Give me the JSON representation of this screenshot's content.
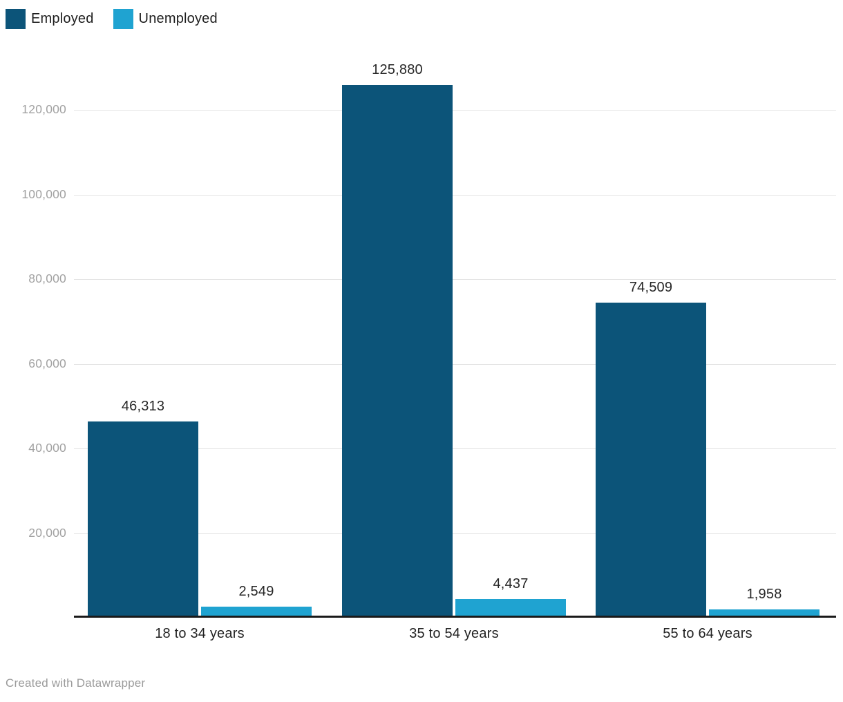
{
  "legend": {
    "items": [
      {
        "label": "Employed",
        "color": "#0c5479"
      },
      {
        "label": "Unemployed",
        "color": "#1fa3d1"
      }
    ]
  },
  "footer": "Created with Datawrapper",
  "chart_data": {
    "type": "bar",
    "title": "",
    "categories": [
      "18 to 34 years",
      "35 to 54 years",
      "55 to 64 years"
    ],
    "series": [
      {
        "name": "Employed",
        "color": "#0c5479",
        "values": [
          46313,
          125880,
          74509
        ],
        "labels": [
          "46,313",
          "125,880",
          "74,509"
        ]
      },
      {
        "name": "Unemployed",
        "color": "#1fa3d1",
        "values": [
          2549,
          4437,
          1958
        ],
        "labels": [
          "2,549",
          "4,437",
          "1,958"
        ]
      }
    ],
    "xlabel": "",
    "ylabel": "",
    "ylim": [
      0,
      130000
    ],
    "y_ticks": [
      20000,
      40000,
      60000,
      80000,
      100000,
      120000
    ],
    "y_tick_labels": [
      "20,000",
      "40,000",
      "60,000",
      "80,000",
      "100,000",
      "120,000"
    ],
    "grid": "horizontal",
    "legend_position": "top-left",
    "value_labels_shown": true
  }
}
